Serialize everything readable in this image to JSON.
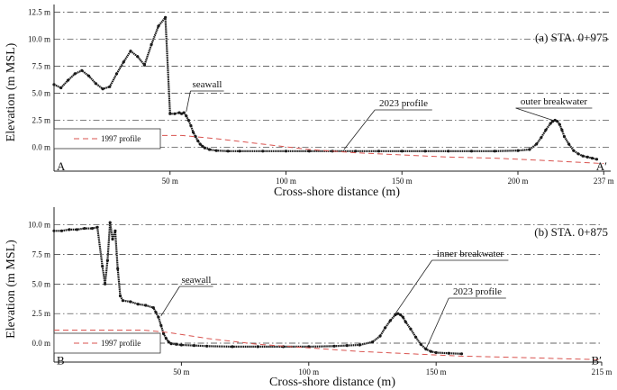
{
  "chart_data": [
    {
      "type": "scatter",
      "title": "(a) STA. 0+975",
      "ylabel": "Elevation (m MSL)",
      "xlabel": "Cross-shore distance (m)",
      "xlim": [
        0,
        240
      ],
      "ylim": [
        -2.2,
        13.2
      ],
      "x_ticks": [
        {
          "value": 50,
          "label": "50 m"
        },
        {
          "value": 100,
          "label": "100 m"
        },
        {
          "value": 150,
          "label": "150 m"
        },
        {
          "value": 200,
          "label": "200 m"
        },
        {
          "value": 237,
          "label": "237 m"
        }
      ],
      "y_ticks": [
        {
          "value": 0,
          "label": "0.0 m"
        },
        {
          "value": 2.5,
          "label": "2.5 m"
        },
        {
          "value": 5,
          "label": "5.0 m"
        },
        {
          "value": 7.5,
          "label": "7.5 m"
        },
        {
          "value": 10,
          "label": "10.0 m"
        },
        {
          "value": 12.5,
          "label": "12.5 m"
        }
      ],
      "grid": "horizontal dash-dot",
      "start_label": "A",
      "end_label": "A′",
      "legend": {
        "placement": "bottom-left",
        "entry": "1997 profile"
      },
      "series": [
        {
          "name": "2023 profile",
          "style": "points",
          "color": "#1a1a1a",
          "x": [
            0,
            3,
            6,
            9,
            12,
            15,
            18,
            21,
            24,
            27,
            30,
            33,
            36,
            39,
            42,
            45,
            48,
            50,
            52,
            54,
            55,
            56,
            57,
            58,
            59,
            60,
            61,
            62,
            63,
            64,
            65,
            67,
            70,
            75,
            80,
            90,
            100,
            110,
            120,
            130,
            140,
            150,
            160,
            170,
            180,
            190,
            200,
            205,
            208,
            210,
            212,
            214,
            215,
            216,
            217,
            218,
            219,
            220,
            222,
            224,
            226,
            228,
            230,
            232,
            234
          ],
          "y": [
            5.8,
            5.5,
            6.2,
            6.8,
            7.1,
            6.6,
            5.9,
            5.4,
            5.6,
            6.8,
            7.9,
            8.9,
            8.4,
            7.6,
            9.5,
            11.2,
            12.0,
            3.1,
            3.1,
            3.2,
            3.1,
            3.2,
            2.9,
            2.5,
            2.0,
            1.4,
            1.0,
            0.6,
            0.3,
            0.1,
            -0.05,
            -0.2,
            -0.3,
            -0.35,
            -0.35,
            -0.35,
            -0.35,
            -0.35,
            -0.35,
            -0.35,
            -0.35,
            -0.35,
            -0.35,
            -0.35,
            -0.35,
            -0.35,
            -0.3,
            -0.2,
            0.3,
            0.9,
            1.6,
            2.2,
            2.4,
            2.5,
            2.4,
            2.1,
            1.6,
            1.0,
            0.3,
            -0.3,
            -0.6,
            -0.8,
            -0.9,
            -1.0,
            -1.1
          ]
        },
        {
          "name": "1997 profile",
          "style": "dashed",
          "color": "#d9534f",
          "x": [
            0,
            40,
            55,
            70,
            90,
            110,
            130,
            150,
            170,
            190,
            210,
            237
          ],
          "y": [
            1.1,
            1.1,
            1.1,
            0.8,
            0.3,
            -0.2,
            -0.5,
            -0.7,
            -0.9,
            -1.0,
            -1.2,
            -1.5
          ]
        }
      ],
      "annotations": [
        {
          "text": "seawall",
          "x": 57,
          "y": 3.3
        },
        {
          "text": "2023 profile",
          "x": 125,
          "y": -0.2
        },
        {
          "text": "outer breakwater",
          "x": 215,
          "y": 2.5
        }
      ]
    },
    {
      "type": "scatter",
      "title": "(b) STA. 0+875",
      "ylabel": "Elevation (m MSL)",
      "xlabel": "Cross-shore distance (m)",
      "xlim": [
        0,
        215
      ],
      "ylim": [
        -1.6,
        11.5
      ],
      "x_ticks": [
        {
          "value": 50,
          "label": "50 m"
        },
        {
          "value": 100,
          "label": "100 m"
        },
        {
          "value": 150,
          "label": "150 m"
        },
        {
          "value": 215,
          "label": "215 m"
        }
      ],
      "y_ticks": [
        {
          "value": 0,
          "label": "0.0 m"
        },
        {
          "value": 2.5,
          "label": "2.5 m"
        },
        {
          "value": 5,
          "label": "5.0 m"
        },
        {
          "value": 7.5,
          "label": "7.5 m"
        },
        {
          "value": 10,
          "label": "10.0 m"
        }
      ],
      "grid": "horizontal dash-dot",
      "start_label": "B",
      "end_label": "B′",
      "legend": {
        "placement": "bottom-left",
        "entry": "1997 profile"
      },
      "series": [
        {
          "name": "2023 profile",
          "style": "points",
          "color": "#1a1a1a",
          "x": [
            0,
            3,
            6,
            9,
            12,
            15,
            17,
            19,
            20,
            21,
            22,
            23,
            24,
            25,
            26,
            27,
            30,
            33,
            36,
            39,
            40,
            41,
            42,
            43,
            44,
            45,
            46,
            48,
            50,
            55,
            60,
            70,
            80,
            90,
            100,
            110,
            115,
            120,
            125,
            128,
            130,
            132,
            134,
            135,
            136,
            137,
            138,
            140,
            142,
            144,
            146,
            148,
            150,
            155,
            160
          ],
          "y": [
            9.5,
            9.5,
            9.6,
            9.6,
            9.7,
            9.7,
            9.8,
            6.5,
            5.0,
            7.0,
            10.2,
            8.8,
            9.5,
            6.3,
            4.0,
            3.6,
            3.5,
            3.3,
            3.2,
            3.0,
            2.6,
            2.2,
            1.5,
            0.8,
            0.4,
            0.1,
            -0.05,
            -0.1,
            -0.15,
            -0.2,
            -0.25,
            -0.3,
            -0.3,
            -0.3,
            -0.3,
            -0.25,
            -0.2,
            -0.15,
            0.1,
            0.6,
            1.3,
            1.9,
            2.4,
            2.5,
            2.4,
            2.2,
            1.8,
            1.2,
            0.5,
            -0.1,
            -0.5,
            -0.7,
            -0.8,
            -0.85,
            -0.9
          ]
        },
        {
          "name": "1997 profile",
          "style": "dashed",
          "color": "#d9534f",
          "x": [
            0,
            35,
            45,
            60,
            80,
            100,
            120,
            140,
            160,
            180,
            215
          ],
          "y": [
            1.1,
            1.1,
            0.9,
            0.4,
            -0.1,
            -0.4,
            -0.7,
            -0.9,
            -1.1,
            -1.2,
            -1.4
          ]
        }
      ],
      "annotations": [
        {
          "text": "seawall",
          "x": 42,
          "y": 2.3
        },
        {
          "text": "inner breakwater",
          "x": 134,
          "y": 2.5
        },
        {
          "text": "2023 profile",
          "x": 146,
          "y": -0.5
        }
      ]
    }
  ]
}
